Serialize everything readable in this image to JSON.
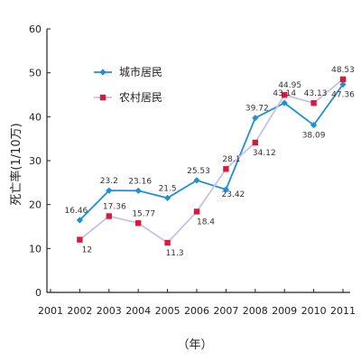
{
  "chart_data": {
    "type": "line",
    "title": "",
    "xlabel": "（年）",
    "ylabel": "死亡率(1/10万)",
    "x": [
      "2001",
      "2002",
      "2003",
      "2004",
      "2005",
      "2006",
      "2007",
      "2008",
      "2009",
      "2010",
      "2011"
    ],
    "ylim": [
      0,
      60
    ],
    "yticks": [
      0,
      10,
      20,
      30,
      40,
      50,
      60
    ],
    "grid": false,
    "legend_position": "top-left",
    "series": [
      {
        "name": "城市居民",
        "color": "#1f8fd6",
        "marker": "diamond",
        "x": [
          "2002",
          "2003",
          "2004",
          "2005",
          "2006",
          "2007",
          "2008",
          "2009",
          "2010",
          "2011"
        ],
        "values": [
          16.46,
          23.2,
          23.16,
          21.5,
          25.53,
          23.42,
          39.72,
          43.14,
          38.09,
          47.36
        ],
        "labels": [
          "16.46",
          "23.2",
          "23.16",
          "21.5",
          "25.53",
          "23.42",
          "39.72",
          "43.14",
          "38.09",
          "47.36"
        ]
      },
      {
        "name": "农村居民",
        "color": "#c8c0e8",
        "marker_color": "#d81b3c",
        "marker": "square",
        "x": [
          "2002",
          "2003",
          "2004",
          "2005",
          "2006",
          "2007",
          "2008",
          "2009",
          "2010",
          "2011"
        ],
        "values": [
          12,
          17.36,
          15.77,
          11.3,
          18.4,
          28.1,
          34.12,
          44.95,
          43.13,
          48.53
        ],
        "labels": [
          "12",
          "17.36",
          "15.77",
          "11.3",
          "18.4",
          "28.1",
          "34.12",
          "44.95",
          "43.13",
          "48.53"
        ]
      }
    ]
  }
}
